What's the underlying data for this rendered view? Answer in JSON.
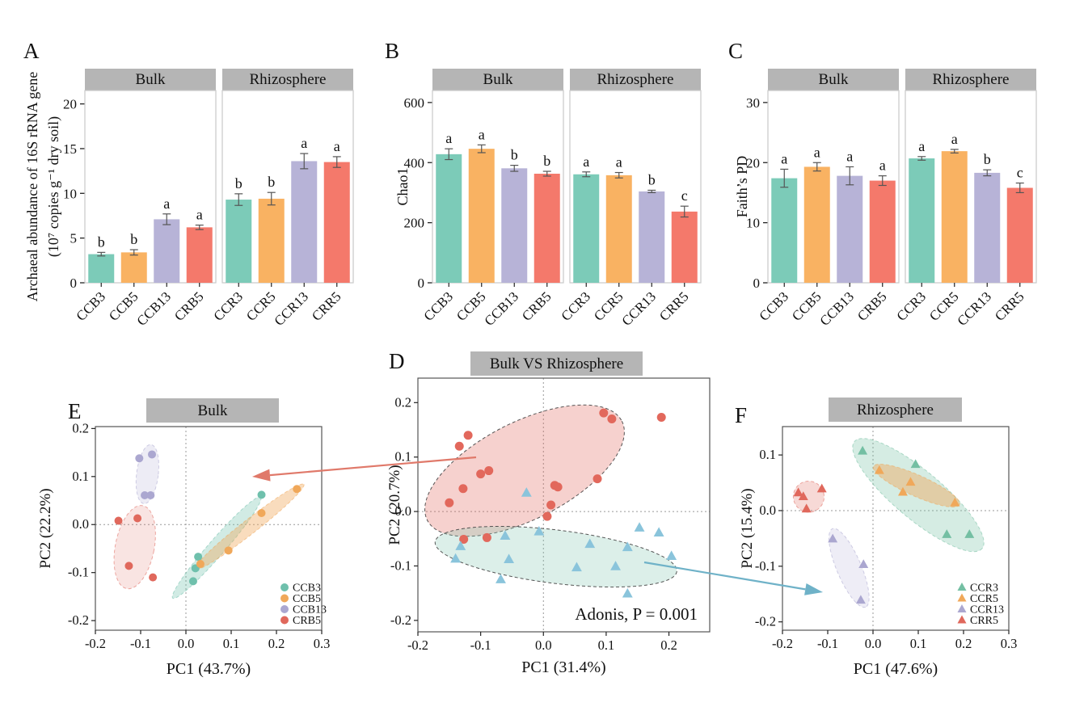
{
  "figure": {
    "background": "#FFFFFF",
    "header_bg": "#B5B5B5",
    "bar_colors": [
      "#7CCBB8",
      "#F9B262",
      "#B7B3D7",
      "#F4796B"
    ],
    "arrows": [
      {
        "name": "bulk-cluster-to-panel-e",
        "color": "#E0796A",
        "from": [
          589,
          566
        ],
        "to": [
          312,
          590
        ]
      },
      {
        "name": "rhizosphere-cluster-to-panel-f",
        "color": "#6FB2C8",
        "from": [
          797,
          696
        ],
        "to": [
          1018,
          733
        ]
      }
    ]
  },
  "chart_data": [
    {
      "panel_letter": "A",
      "type": "bar",
      "ylabel_lines": [
        "Archaeal abundance of 16S rRNA gene",
        "(10⁷ copies g⁻¹ dry soil)"
      ],
      "ylim_max": 21.5,
      "yticks": [
        0,
        5,
        10,
        15,
        20
      ],
      "facets": [
        {
          "label": "Bulk",
          "categories": [
            "CCB3",
            "CCB5",
            "CCB13",
            "CRB5"
          ],
          "values": [
            3.2,
            3.4,
            7.1,
            6.2
          ],
          "errors": [
            0.2,
            0.3,
            0.6,
            0.25
          ],
          "sig_letters": [
            "b",
            "b",
            "a",
            "a"
          ]
        },
        {
          "label": "Rhizosphere",
          "categories": [
            "CCR3",
            "CCR5",
            "CCR13",
            "CRR5"
          ],
          "values": [
            9.3,
            9.4,
            13.6,
            13.5
          ],
          "errors": [
            0.65,
            0.7,
            0.85,
            0.6
          ],
          "sig_letters": [
            "b",
            "b",
            "a",
            "a"
          ]
        }
      ]
    },
    {
      "panel_letter": "B",
      "type": "bar",
      "ylabel_lines": [
        "Chao1"
      ],
      "ylim_max": 640,
      "yticks": [
        0,
        200,
        400,
        600
      ],
      "facets": [
        {
          "label": "Bulk",
          "categories": [
            "CCB3",
            "CCB5",
            "CCB13",
            "CRB5"
          ],
          "values": [
            428,
            446,
            381,
            363
          ],
          "errors": [
            18,
            13,
            10,
            8
          ],
          "sig_letters": [
            "a",
            "a",
            "b",
            "b"
          ]
        },
        {
          "label": "Rhizosphere",
          "categories": [
            "CCR3",
            "CCR5",
            "CCR13",
            "CRR5"
          ],
          "values": [
            361,
            358,
            304,
            237
          ],
          "errors": [
            8,
            9,
            4,
            18
          ],
          "sig_letters": [
            "a",
            "a",
            "b",
            "c"
          ]
        }
      ]
    },
    {
      "panel_letter": "C",
      "type": "bar",
      "ylabel_lines": [
        "Faith’s PD"
      ],
      "ylim_max": 32,
      "yticks": [
        0,
        10,
        20,
        30
      ],
      "facets": [
        {
          "label": "Bulk",
          "categories": [
            "CCB3",
            "CCB5",
            "CCB13",
            "CRB5"
          ],
          "values": [
            17.4,
            19.3,
            17.8,
            17.0
          ],
          "errors": [
            1.5,
            0.7,
            1.5,
            0.8
          ],
          "sig_letters": [
            "a",
            "a",
            "a",
            "a"
          ]
        },
        {
          "label": "Rhizosphere",
          "categories": [
            "CCR3",
            "CCR5",
            "CCR13",
            "CRR5"
          ],
          "values": [
            20.7,
            21.9,
            18.3,
            15.8
          ],
          "errors": [
            0.3,
            0.3,
            0.5,
            0.8
          ],
          "sig_letters": [
            "a",
            "a",
            "b",
            "c"
          ]
        }
      ]
    },
    {
      "panel_letter": "D",
      "type": "scatter",
      "header": "Bulk VS Rhizosphere",
      "xlabel": "PC1 (31.4%)",
      "ylabel": "PC2 (20.7%)",
      "annotation": "Adonis, P = 0.001",
      "xlim": [
        -0.2,
        0.265
      ],
      "ylim": [
        -0.221,
        0.245
      ],
      "xtick_vals": [
        -0.2,
        -0.1,
        0,
        0.1,
        0.2
      ],
      "xtick_labels": [
        "-0.2",
        "-0.1",
        "0.0",
        "0.1",
        "0.2"
      ],
      "ytick_vals": [
        -0.2,
        -0.1,
        0,
        0.1,
        0.2
      ],
      "ytick_labels": [
        "-0.2",
        "-0.1",
        "0.0",
        "0.1",
        "0.2"
      ],
      "legend": false,
      "series": [
        {
          "name": "Bulk",
          "marker": "circle",
          "color": "#E2685C",
          "points": [
            [
              -0.12,
              0.14
            ],
            [
              -0.134,
              0.12
            ],
            [
              -0.1,
              0.069
            ],
            [
              -0.087,
              0.075
            ],
            [
              -0.128,
              0.042
            ],
            [
              -0.15,
              0.016
            ],
            [
              0.018,
              0.048
            ],
            [
              0.023,
              0.045
            ],
            [
              0.086,
              0.06
            ],
            [
              0.096,
              0.181
            ],
            [
              0.109,
              0.17
            ],
            [
              0.188,
              0.173
            ],
            [
              0.012,
              0.012
            ],
            [
              0.006,
              -0.009
            ],
            [
              -0.127,
              -0.051
            ],
            [
              -0.09,
              -0.048
            ]
          ],
          "ellipse": {
            "cx": -0.03,
            "cy": 0.075,
            "rx": 0.174,
            "ry": 0.089,
            "rot": -27,
            "opacity": 0.3,
            "stroke": "#444"
          }
        },
        {
          "name": "Rhizosphere",
          "marker": "triangle",
          "color": "#8AC4DB",
          "points": [
            [
              -0.027,
              0.034
            ],
            [
              -0.061,
              -0.045
            ],
            [
              -0.007,
              -0.037
            ],
            [
              -0.132,
              -0.064
            ],
            [
              -0.14,
              -0.087
            ],
            [
              -0.055,
              -0.088
            ],
            [
              -0.068,
              -0.125
            ],
            [
              0.053,
              -0.103
            ],
            [
              0.074,
              -0.06
            ],
            [
              0.134,
              -0.066
            ],
            [
              0.115,
              -0.101
            ],
            [
              0.153,
              -0.03
            ],
            [
              0.184,
              -0.039
            ],
            [
              0.204,
              -0.082
            ],
            [
              0.134,
              -0.151
            ]
          ],
          "ellipse": {
            "cx": 0.02,
            "cy": -0.083,
            "rx": 0.194,
            "ry": 0.049,
            "rot": 7,
            "opacity": 0.28,
            "fill": "#82C7AF",
            "stroke": "#444"
          }
        }
      ]
    },
    {
      "panel_letter": "E",
      "type": "scatter",
      "header": "Bulk",
      "xlabel": "PC1 (43.7%)",
      "ylabel": "PC2 (22.2%)",
      "annotation": "",
      "xlim": [
        -0.2,
        0.3
      ],
      "ylim": [
        -0.22,
        0.204
      ],
      "xtick_vals": [
        -0.2,
        -0.1,
        0,
        0.1,
        0.2,
        0.3
      ],
      "xtick_labels": [
        "-0.2",
        "-0.1",
        "0.0",
        "0.1",
        "0.2",
        "0.3"
      ],
      "ytick_vals": [
        -0.2,
        -0.1,
        0,
        0.1,
        0.2
      ],
      "ytick_labels": [
        "-0.2",
        "-0.1",
        "0.0",
        "0.1",
        "0.2"
      ],
      "legend": true,
      "series": [
        {
          "name": "CCB3",
          "marker": "circle",
          "color": "#6FC0AC",
          "points": [
            [
              0.167,
              0.062
            ],
            [
              0.027,
              -0.067
            ],
            [
              0.021,
              -0.091
            ],
            [
              0.016,
              -0.118
            ]
          ],
          "ellipse": {
            "cx": 0.068,
            "cy": -0.048,
            "rx": 0.148,
            "ry": 0.017,
            "rot": -49,
            "opacity": 0.32
          }
        },
        {
          "name": "CCB5",
          "marker": "circle",
          "color": "#F0A85A",
          "points": [
            [
              0.245,
              0.074
            ],
            [
              0.167,
              0.024
            ],
            [
              0.094,
              -0.054
            ],
            [
              0.032,
              -0.082
            ]
          ],
          "ellipse": {
            "cx": 0.14,
            "cy": -0.005,
            "rx": 0.153,
            "ry": 0.015,
            "rot": -38,
            "opacity": 0.4
          }
        },
        {
          "name": "CCB13",
          "marker": "circle",
          "color": "#ABA7D0",
          "points": [
            [
              -0.103,
              0.138
            ],
            [
              -0.075,
              0.146
            ],
            [
              -0.091,
              0.061
            ],
            [
              -0.078,
              0.061
            ]
          ],
          "ellipse": {
            "cx": -0.085,
            "cy": 0.105,
            "rx": 0.024,
            "ry": 0.062,
            "rot": 7,
            "opacity": 0.22
          }
        },
        {
          "name": "CRB5",
          "marker": "circle",
          "color": "#E0685C",
          "points": [
            [
              -0.149,
              0.008
            ],
            [
              -0.107,
              0.013
            ],
            [
              -0.126,
              -0.086
            ],
            [
              -0.073,
              -0.11
            ]
          ],
          "ellipse": {
            "cx": -0.113,
            "cy": -0.047,
            "rx": 0.043,
            "ry": 0.088,
            "rot": 11,
            "opacity": 0.18
          }
        }
      ]
    },
    {
      "panel_letter": "F",
      "type": "scatter",
      "header": "Rhizosphere",
      "xlabel": "PC1 (47.6%)",
      "ylabel": "PC2 (15.4%)",
      "annotation": "",
      "xlim": [
        -0.2,
        0.3
      ],
      "ylim": [
        -0.215,
        0.151
      ],
      "xtick_vals": [
        -0.2,
        -0.1,
        0,
        0.1,
        0.2,
        0.3
      ],
      "xtick_labels": [
        "-0.2",
        "-0.1",
        "0.0",
        "0.1",
        "0.2",
        "0.3"
      ],
      "ytick_vals": [
        -0.2,
        -0.1,
        0,
        0.1
      ],
      "ytick_labels": [
        "-0.2",
        "-0.1",
        "0.0",
        "0.1"
      ],
      "legend": true,
      "series": [
        {
          "name": "CCR3",
          "marker": "triangle",
          "color": "#74BFA3",
          "points": [
            [
              -0.023,
              0.107
            ],
            [
              0.094,
              0.083
            ],
            [
              0.163,
              -0.043
            ],
            [
              0.213,
              -0.043
            ]
          ],
          "ellipse": {
            "cx": 0.1,
            "cy": 0.028,
            "rx": 0.184,
            "ry": 0.043,
            "rot": 40,
            "opacity": 0.3
          }
        },
        {
          "name": "CCR5",
          "marker": "triangle",
          "color": "#F0A85A",
          "points": [
            [
              0.014,
              0.072
            ],
            [
              0.083,
              0.051
            ],
            [
              0.066,
              0.033
            ],
            [
              0.181,
              0.014
            ]
          ],
          "ellipse": {
            "cx": 0.096,
            "cy": 0.045,
            "rx": 0.104,
            "ry": 0.019,
            "rot": 24,
            "opacity": 0.45
          }
        },
        {
          "name": "CCR13",
          "marker": "triangle",
          "color": "#ABA7D0",
          "points": [
            [
              -0.089,
              -0.051
            ],
            [
              -0.021,
              -0.097
            ],
            [
              -0.027,
              -0.161
            ]
          ],
          "ellipse": {
            "cx": -0.053,
            "cy": -0.103,
            "rx": 0.094,
            "ry": 0.022,
            "rot": 67,
            "opacity": 0.2
          }
        },
        {
          "name": "CRR5",
          "marker": "triangle",
          "color": "#E0685C",
          "points": [
            [
              -0.165,
              0.032
            ],
            [
              -0.154,
              0.025
            ],
            [
              -0.113,
              0.039
            ],
            [
              -0.147,
              0.003
            ]
          ],
          "ellipse": {
            "cx": -0.142,
            "cy": 0.025,
            "rx": 0.034,
            "ry": 0.028,
            "rot": -15,
            "opacity": 0.25
          }
        }
      ]
    }
  ]
}
